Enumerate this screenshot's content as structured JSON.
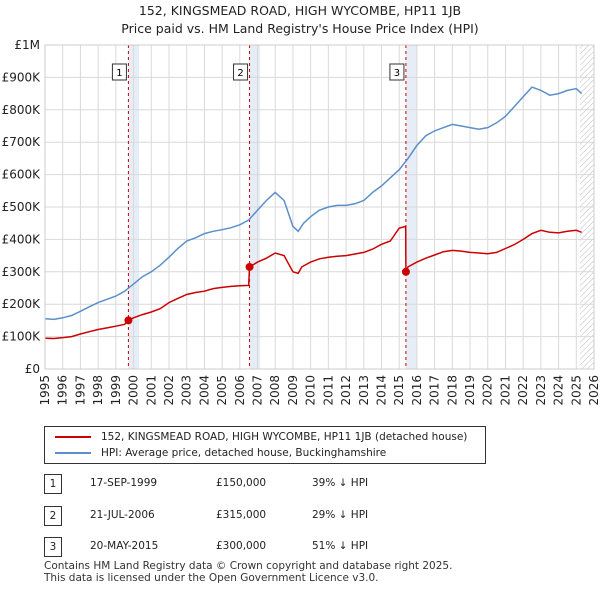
{
  "chart_data": {
    "type": "line",
    "title": "152, KINGSMEAD ROAD, HIGH WYCOMBE, HP11 1JB",
    "subtitle": "Price paid vs. HM Land Registry's House Price Index (HPI)",
    "xlim": [
      1995,
      2026
    ],
    "ylim": [
      0,
      1000000
    ],
    "x_ticks": [
      "1995",
      "1996",
      "1997",
      "1998",
      "1999",
      "2000",
      "2001",
      "2002",
      "2003",
      "2004",
      "2005",
      "2006",
      "2007",
      "2008",
      "2009",
      "2010",
      "2011",
      "2012",
      "2013",
      "2014",
      "2015",
      "2016",
      "2017",
      "2018",
      "2019",
      "2020",
      "2021",
      "2022",
      "2023",
      "2024",
      "2025",
      "2026"
    ],
    "y_ticks": [
      {
        "value": 0,
        "label": "£0"
      },
      {
        "value": 100000,
        "label": "£100K"
      },
      {
        "value": 200000,
        "label": "£200K"
      },
      {
        "value": 300000,
        "label": "£300K"
      },
      {
        "value": 400000,
        "label": "£400K"
      },
      {
        "value": 500000,
        "label": "£500K"
      },
      {
        "value": 600000,
        "label": "£600K"
      },
      {
        "value": 700000,
        "label": "£700K"
      },
      {
        "value": 800000,
        "label": "£800K"
      },
      {
        "value": 900000,
        "label": "£900K"
      },
      {
        "value": 1000000,
        "label": "£1M"
      }
    ],
    "grid": true,
    "hatched_after": 2025.2,
    "series": [
      {
        "name": "152, KINGSMEAD ROAD, HIGH WYCOMBE, HP11 1JB (detached house)",
        "color": "#cc0000",
        "x": [
          1995.0,
          1995.5,
          1996.0,
          1996.5,
          1997.0,
          1997.5,
          1998.0,
          1998.5,
          1999.0,
          1999.5,
          1999.71,
          2000.0,
          2000.5,
          2001.0,
          2001.5,
          2002.0,
          2002.5,
          2003.0,
          2003.5,
          2004.0,
          2004.5,
          2005.0,
          2005.5,
          2006.0,
          2006.5,
          2006.55,
          2007.0,
          2007.5,
          2008.0,
          2008.5,
          2009.0,
          2009.3,
          2009.5,
          2010.0,
          2010.5,
          2011.0,
          2011.5,
          2012.0,
          2012.5,
          2013.0,
          2013.5,
          2014.0,
          2014.5,
          2015.0,
          2015.37,
          2015.38,
          2015.5,
          2016.0,
          2016.5,
          2017.0,
          2017.5,
          2018.0,
          2018.5,
          2019.0,
          2019.5,
          2020.0,
          2020.5,
          2021.0,
          2021.5,
          2022.0,
          2022.5,
          2023.0,
          2023.5,
          2024.0,
          2024.5,
          2025.0,
          2025.3
        ],
        "y": [
          95000,
          94000,
          97000,
          100000,
          108000,
          115000,
          122000,
          127000,
          132000,
          138000,
          150000,
          158000,
          168000,
          176000,
          186000,
          205000,
          218000,
          230000,
          236000,
          240000,
          248000,
          252000,
          255000,
          257000,
          258000,
          315000,
          330000,
          342000,
          358000,
          350000,
          300000,
          295000,
          315000,
          330000,
          340000,
          345000,
          348000,
          350000,
          355000,
          360000,
          370000,
          385000,
          395000,
          435000,
          440000,
          300000,
          315000,
          330000,
          342000,
          352000,
          362000,
          366000,
          364000,
          360000,
          358000,
          356000,
          360000,
          372000,
          384000,
          400000,
          418000,
          428000,
          422000,
          420000,
          425000,
          428000,
          422000
        ]
      },
      {
        "name": "HPI: Average price, detached house, Buckinghamshire",
        "color": "#5b8fc9",
        "x": [
          1995.0,
          1995.5,
          1996.0,
          1996.5,
          1997.0,
          1997.5,
          1998.0,
          1998.5,
          1999.0,
          1999.5,
          2000.0,
          2000.5,
          2001.0,
          2001.5,
          2002.0,
          2002.5,
          2003.0,
          2003.5,
          2004.0,
          2004.5,
          2005.0,
          2005.5,
          2006.0,
          2006.5,
          2007.0,
          2007.5,
          2008.0,
          2008.5,
          2009.0,
          2009.3,
          2009.6,
          2010.0,
          2010.5,
          2011.0,
          2011.5,
          2012.0,
          2012.5,
          2013.0,
          2013.5,
          2014.0,
          2014.5,
          2015.0,
          2015.5,
          2016.0,
          2016.5,
          2017.0,
          2017.5,
          2018.0,
          2018.5,
          2019.0,
          2019.5,
          2020.0,
          2020.5,
          2021.0,
          2021.5,
          2022.0,
          2022.5,
          2023.0,
          2023.5,
          2024.0,
          2024.5,
          2025.0,
          2025.3
        ],
        "y": [
          155000,
          153000,
          158000,
          165000,
          178000,
          192000,
          205000,
          215000,
          225000,
          240000,
          262000,
          285000,
          300000,
          320000,
          345000,
          372000,
          395000,
          405000,
          418000,
          425000,
          430000,
          436000,
          445000,
          460000,
          490000,
          520000,
          545000,
          520000,
          440000,
          425000,
          450000,
          470000,
          490000,
          500000,
          505000,
          505000,
          510000,
          520000,
          545000,
          565000,
          590000,
          615000,
          650000,
          690000,
          720000,
          735000,
          745000,
          755000,
          750000,
          745000,
          740000,
          745000,
          760000,
          780000,
          810000,
          840000,
          870000,
          860000,
          845000,
          850000,
          860000,
          865000,
          850000
        ]
      }
    ],
    "sales": [
      {
        "label": "1",
        "x": 1999.71,
        "y": 150000
      },
      {
        "label": "2",
        "x": 2006.55,
        "y": 315000
      },
      {
        "label": "3",
        "x": 2015.38,
        "y": 300000
      }
    ]
  },
  "legend": {
    "items": [
      {
        "label": "152, KINGSMEAD ROAD, HIGH WYCOMBE, HP11 1JB (detached house)",
        "color": "#cc0000"
      },
      {
        "label": "HPI: Average price, detached house, Buckinghamshire",
        "color": "#5b8fc9"
      }
    ]
  },
  "transactions": [
    {
      "num": "1",
      "date": "17-SEP-1999",
      "price": "£150,000",
      "hpi": "39% ↓ HPI"
    },
    {
      "num": "2",
      "date": "21-JUL-2006",
      "price": "£315,000",
      "hpi": "29% ↓ HPI"
    },
    {
      "num": "3",
      "date": "20-MAY-2015",
      "price": "£300,000",
      "hpi": "51% ↓ HPI"
    }
  ],
  "footer": {
    "line1": "Contains HM Land Registry data © Crown copyright and database right 2025.",
    "line2": "This data is licensed under the Open Government Licence v3.0."
  }
}
